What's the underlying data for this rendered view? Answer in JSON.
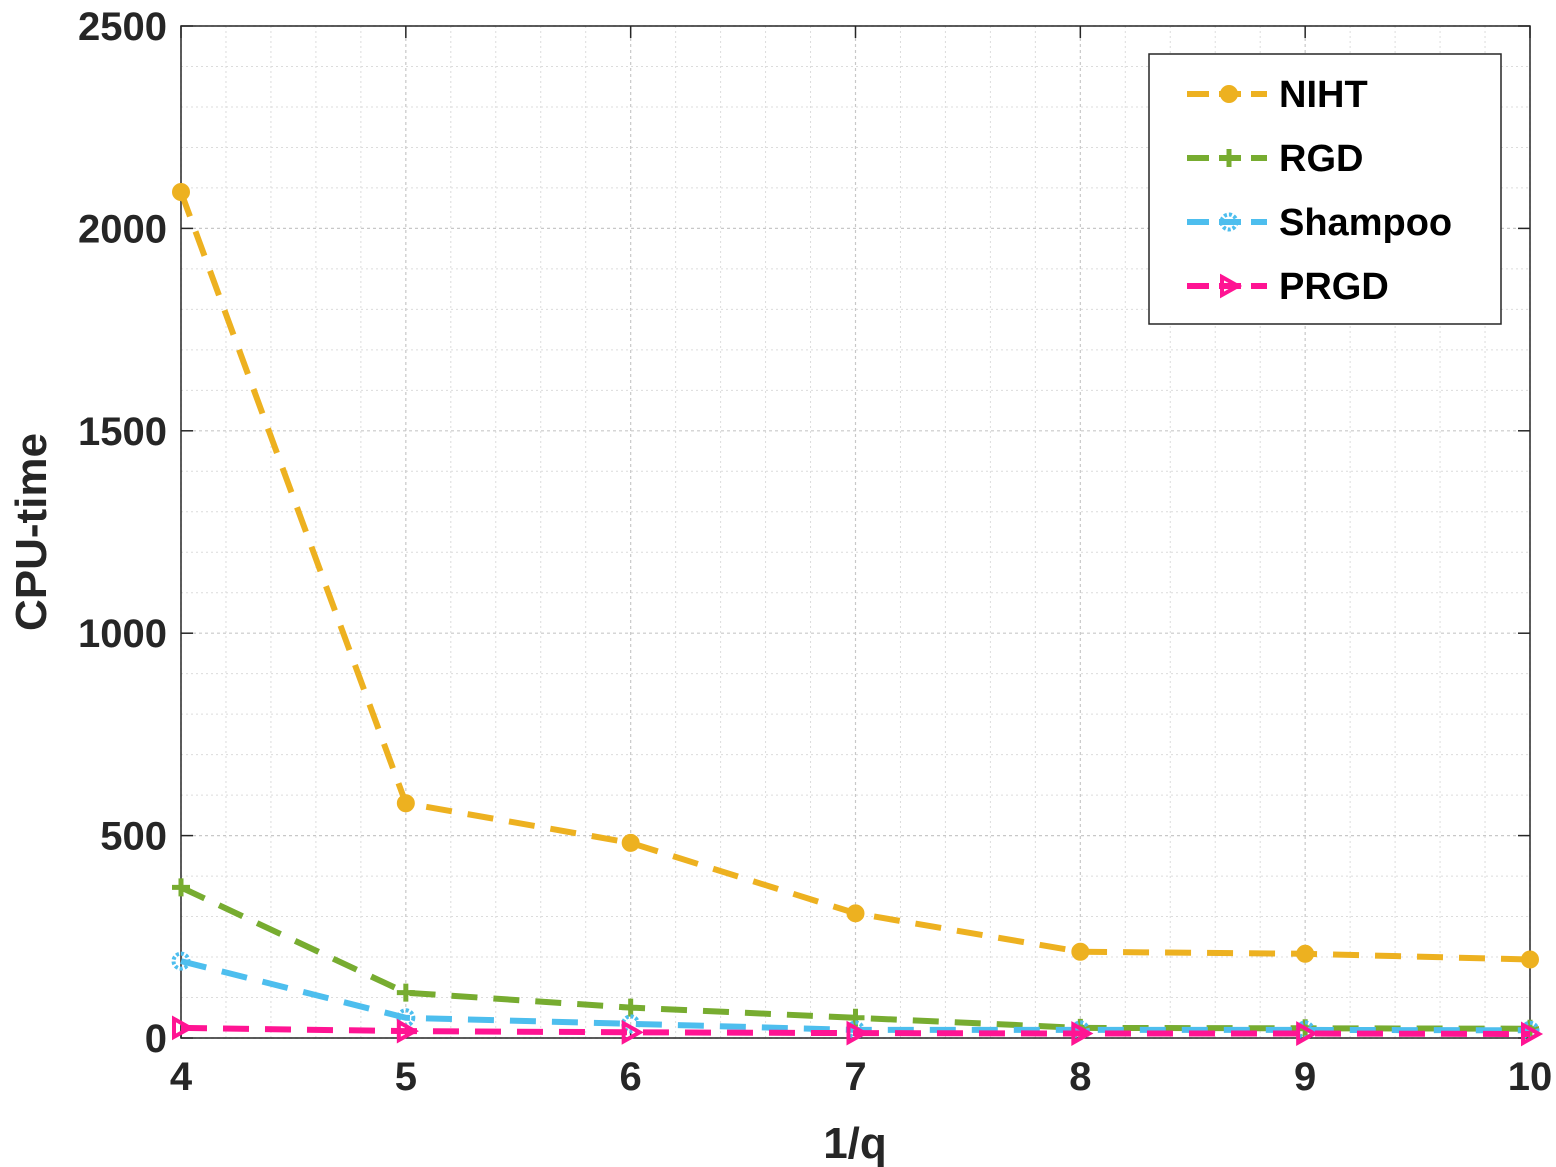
{
  "chart_data": {
    "type": "line",
    "title": "",
    "xlabel": "1/q",
    "ylabel": "CPU-time",
    "x": [
      4,
      5,
      6,
      7,
      8,
      9,
      10
    ],
    "xlim": [
      4,
      10
    ],
    "ylim": [
      0,
      2500
    ],
    "xticks": [
      "4",
      "5",
      "6",
      "7",
      "8",
      "9",
      "10"
    ],
    "yticks": [
      "0",
      "500",
      "1000",
      "1500",
      "2000",
      "2500"
    ],
    "grid": true,
    "minor_grid": true,
    "legend_position": "top-right",
    "series": [
      {
        "name": "NIHT",
        "color": "#EDB120",
        "marker": "filled-circle",
        "values": [
          2090,
          580,
          482,
          308,
          213,
          208,
          194
        ]
      },
      {
        "name": "RGD",
        "color": "#77AC30",
        "marker": "plus",
        "values": [
          372,
          112,
          75,
          50,
          25,
          24,
          23
        ]
      },
      {
        "name": "Shampoo",
        "color": "#4DBEEE",
        "marker": "open-circle",
        "values": [
          190,
          50,
          35,
          20,
          20,
          20,
          19
        ]
      },
      {
        "name": "PRGD",
        "color": "#FF1493",
        "marker": "triangle-right",
        "values": [
          25,
          17,
          14,
          12,
          11,
          11,
          10
        ]
      }
    ]
  }
}
